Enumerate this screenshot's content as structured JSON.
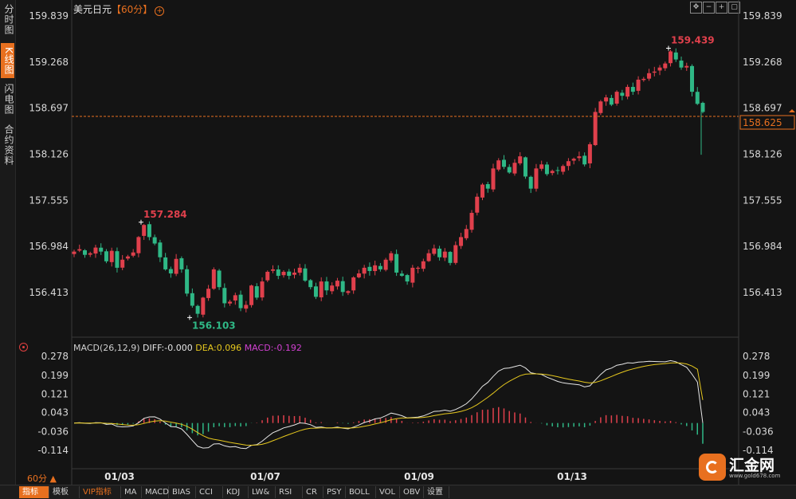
{
  "sidebar": {
    "tabs": [
      {
        "label": "分时图",
        "active": false
      },
      {
        "label": "K线图",
        "active": true
      },
      {
        "label": "闪电图",
        "active": false
      },
      {
        "label": "合约资料",
        "active": false
      }
    ]
  },
  "header": {
    "symbol": "美元日元",
    "period": "【60分】",
    "toolbar_icons": [
      "move-icon",
      "zoom-out-icon",
      "zoom-in-icon",
      "restore-icon"
    ]
  },
  "current_price_label": "158.625",
  "macd": {
    "params": "MACD(26,12,9)",
    "diff": "DIFF:-0.000",
    "dea": "DEA:0.096",
    "macd": "MACD:-0.192",
    "colors": {
      "diff": "#e6e6e6",
      "dea": "#e6c81e",
      "macd": "#d040d0"
    }
  },
  "period_selector": "60分",
  "bottom_tabs": [
    {
      "label": "指标",
      "state": "selected"
    },
    {
      "label": "模板",
      "state": ""
    },
    {
      "label": "VIP指标",
      "state": "vip"
    },
    {
      "label": "MA",
      "state": ""
    },
    {
      "label": "MACD",
      "state": ""
    },
    {
      "label": "BIAS",
      "state": ""
    },
    {
      "label": "CCI",
      "state": ""
    },
    {
      "label": "KDJ",
      "state": ""
    },
    {
      "label": "LW&",
      "state": ""
    },
    {
      "label": "RSI",
      "state": ""
    },
    {
      "label": "CR",
      "state": ""
    },
    {
      "label": "PSY",
      "state": ""
    },
    {
      "label": "BOLL",
      "state": ""
    },
    {
      "label": "VOL",
      "state": ""
    },
    {
      "label": "OBV",
      "state": ""
    },
    {
      "label": "设置",
      "state": ""
    }
  ],
  "logo": {
    "name": "汇金网",
    "url": "www.gold678.com"
  },
  "chart_data": [
    {
      "type": "candlestick",
      "title": "美元日元 60分",
      "y_ticks": [
        "159.839",
        "159.268",
        "158.697",
        "158.126",
        "157.555",
        "156.984",
        "156.413"
      ],
      "ylim": [
        156.0,
        159.9
      ],
      "x_ticks": [
        "01/03",
        "01/07",
        "01/09",
        "01/13"
      ],
      "annotations": {
        "high": "159.439",
        "low": "156.103",
        "local_high": "157.284"
      },
      "current_price": 158.625,
      "colors": {
        "up": "#e0404c",
        "down": "#2fb886",
        "dashline": "#e8701f"
      },
      "close_path": [
        156.92,
        156.95,
        156.88,
        156.9,
        156.97,
        156.92,
        156.8,
        156.93,
        156.72,
        156.82,
        156.86,
        156.91,
        157.1,
        157.25,
        157.1,
        157.02,
        156.85,
        156.7,
        156.65,
        156.83,
        156.7,
        156.4,
        156.25,
        156.15,
        156.35,
        156.46,
        156.7,
        156.48,
        156.28,
        156.3,
        156.38,
        156.22,
        156.26,
        156.5,
        156.35,
        156.55,
        156.67,
        156.7,
        156.62,
        156.67,
        156.62,
        156.66,
        156.72,
        156.56,
        156.48,
        156.36,
        156.55,
        156.44,
        156.5,
        156.56,
        156.42,
        156.43,
        156.6,
        156.65,
        156.72,
        156.68,
        156.75,
        156.7,
        156.82,
        156.9,
        156.66,
        156.62,
        156.55,
        156.72,
        156.72,
        156.8,
        156.9,
        156.96,
        156.85,
        156.92,
        156.78,
        157.0,
        157.1,
        157.2,
        157.4,
        157.6,
        157.75,
        157.7,
        157.95,
        158.05,
        157.97,
        157.9,
        158.02,
        158.1,
        157.85,
        157.7,
        157.95,
        158.0,
        157.88,
        157.92,
        157.92,
        157.98,
        158.04,
        158.07,
        158.1,
        158.0,
        158.25,
        158.65,
        158.78,
        158.83,
        158.74,
        158.9,
        158.85,
        158.96,
        158.9,
        159.05,
        159.06,
        159.13,
        159.15,
        159.2,
        159.25,
        159.4,
        159.3,
        159.2,
        159.22,
        158.9,
        158.75,
        158.65
      ]
    },
    {
      "type": "macd",
      "params": "MACD(26,12,9)",
      "y_ticks": [
        "0.278",
        "0.199",
        "0.121",
        "0.043",
        "-0.036",
        "-0.114"
      ],
      "ylim": [
        -0.16,
        0.29
      ],
      "diff_last": -0.0,
      "dea_last": 0.096,
      "macd_last": -0.192
    }
  ]
}
